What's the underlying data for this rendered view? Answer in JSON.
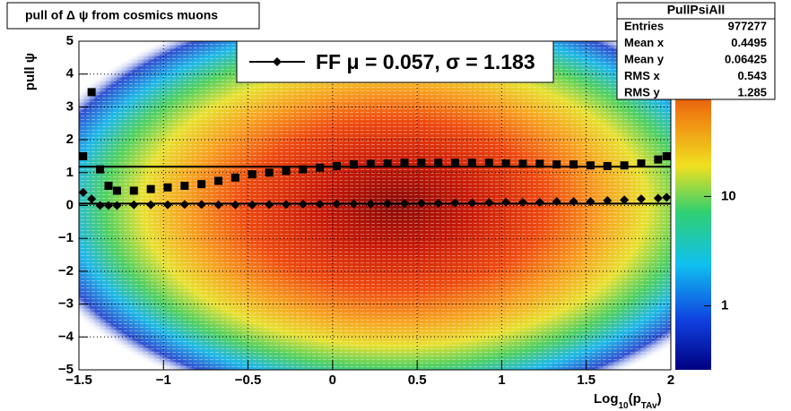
{
  "chart_data": {
    "type": "profile2d",
    "title": "pull of Δ ψ from cosmics muons",
    "y_label": "pull  ψ",
    "x_label": [
      "Log",
      "10",
      "(p",
      "TAv",
      ")"
    ],
    "legend": {
      "label": "FF μ =  0.057, σ =   1.183",
      "corner": "top"
    },
    "fit": {
      "mean": 0.057,
      "sigma": 1.183
    },
    "stats": {
      "title": "PullPsiAll",
      "rows": [
        [
          "Entries",
          977277
        ],
        [
          "Mean x",
          0.4495
        ],
        [
          "Mean y",
          0.06425
        ],
        [
          "RMS x",
          0.543
        ],
        [
          "RMS y",
          1.285
        ]
      ]
    },
    "x": [
      -1.475,
      -1.425,
      -1.375,
      -1.325,
      -1.275,
      -1.175,
      -1.075,
      -0.975,
      -0.875,
      -0.775,
      -0.675,
      -0.575,
      -0.475,
      -0.375,
      -0.275,
      -0.175,
      -0.075,
      0.025,
      0.125,
      0.225,
      0.325,
      0.425,
      0.525,
      0.625,
      0.725,
      0.825,
      0.925,
      1.025,
      1.125,
      1.225,
      1.325,
      1.425,
      1.525,
      1.625,
      1.725,
      1.825,
      1.925,
      1.975
    ],
    "series": [
      {
        "marker": "square",
        "color": "#000000",
        "values": [
          1.5,
          3.45,
          1.1,
          0.6,
          0.45,
          0.45,
          0.5,
          0.55,
          0.6,
          0.65,
          0.75,
          0.85,
          0.95,
          1.0,
          1.05,
          1.1,
          1.15,
          1.2,
          1.25,
          1.27,
          1.28,
          1.3,
          1.3,
          1.3,
          1.3,
          1.3,
          1.3,
          1.28,
          1.27,
          1.27,
          1.25,
          1.25,
          1.22,
          1.2,
          1.22,
          1.28,
          1.4,
          1.5
        ]
      },
      {
        "marker": "diamond",
        "color": "#000000",
        "values": [
          0.4,
          0.2,
          0.0,
          0.0,
          0.0,
          0.02,
          0.02,
          0.02,
          0.03,
          0.03,
          0.02,
          0.02,
          0.02,
          0.03,
          0.03,
          0.04,
          0.04,
          0.05,
          0.05,
          0.05,
          0.06,
          0.06,
          0.07,
          0.07,
          0.08,
          0.08,
          0.09,
          0.1,
          0.1,
          0.1,
          0.12,
          0.12,
          0.12,
          0.15,
          0.17,
          0.2,
          0.22,
          0.25
        ]
      }
    ],
    "xlim": [
      -1.5,
      2
    ],
    "xticks": [
      {
        "value": -1.5,
        "label": "−1.5"
      },
      {
        "value": -1,
        "label": "−1"
      },
      {
        "value": -0.5,
        "label": "−0.5"
      },
      0,
      0.5,
      1,
      1.5,
      2
    ],
    "ylim": [
      -5,
      5
    ],
    "yticks": [
      {
        "value": -5,
        "label": "−5"
      },
      {
        "value": -4,
        "label": "−4"
      },
      {
        "value": -3,
        "label": "−3"
      },
      {
        "value": -2,
        "label": "−2"
      },
      {
        "value": -1,
        "label": "−1"
      },
      0,
      1,
      2,
      3,
      4,
      5
    ],
    "zlim": [
      0.26,
      263
    ],
    "zlog": true,
    "zticks": [
      1,
      10
    ],
    "grid": true
  }
}
